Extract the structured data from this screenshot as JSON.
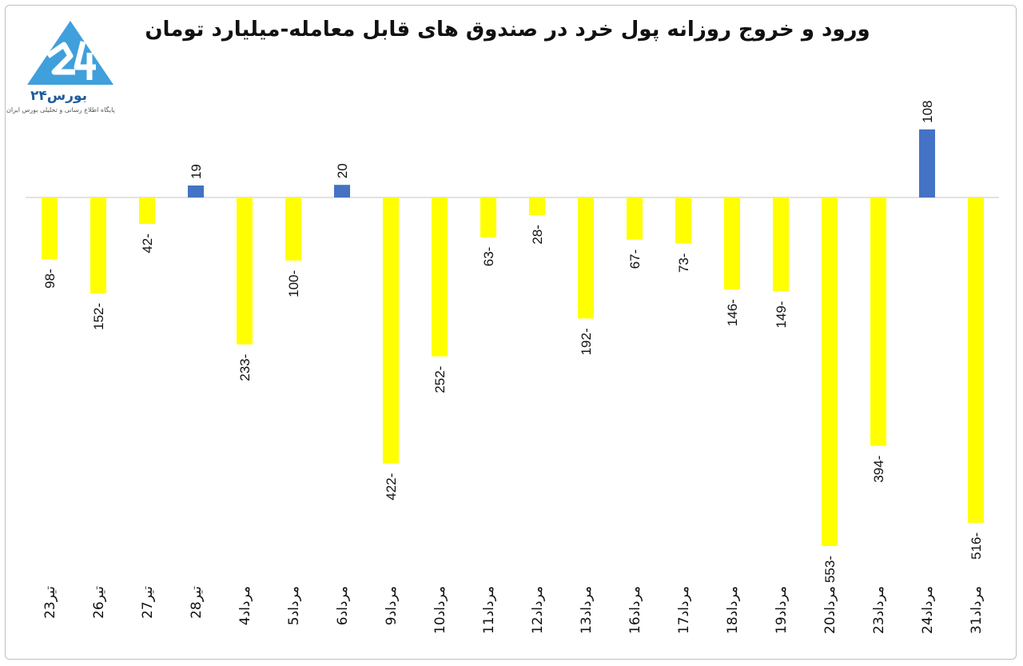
{
  "chart_data": {
    "type": "bar",
    "title": "ورود و خروج روزانه پول خرد در صندوق های قابل معامله-میلیارد تومان",
    "categories": [
      "23تیر",
      "26تیر",
      "27تیر",
      "28تیر",
      "4مرداد",
      "5مرداد",
      "6مرداد",
      "9مرداد",
      "10مرداد",
      "11مرداد",
      "12مرداد",
      "13مرداد",
      "16مرداد",
      "17مرداد",
      "18مرداد",
      "19مرداد",
      "20مرداد",
      "23مرداد",
      "24مرداد",
      "31مرداد"
    ],
    "values": [
      -98,
      -152,
      -42,
      19,
      -233,
      -100,
      20,
      -422,
      -252,
      -63,
      -28,
      -192,
      -67,
      -73,
      -146,
      -149,
      -553,
      -394,
      108,
      -516
    ],
    "ylim": [
      -553,
      108
    ],
    "grid": false,
    "legend": "none",
    "colors": {
      "positive": "#4472c4",
      "negative": "#ffff00",
      "axis": "#d9d9d9"
    }
  },
  "logo": {
    "mark": "24",
    "name": "بورس۲۴",
    "tagline": "پایگاه اطلاع رسانی و تحلیلی بورس ایران"
  }
}
